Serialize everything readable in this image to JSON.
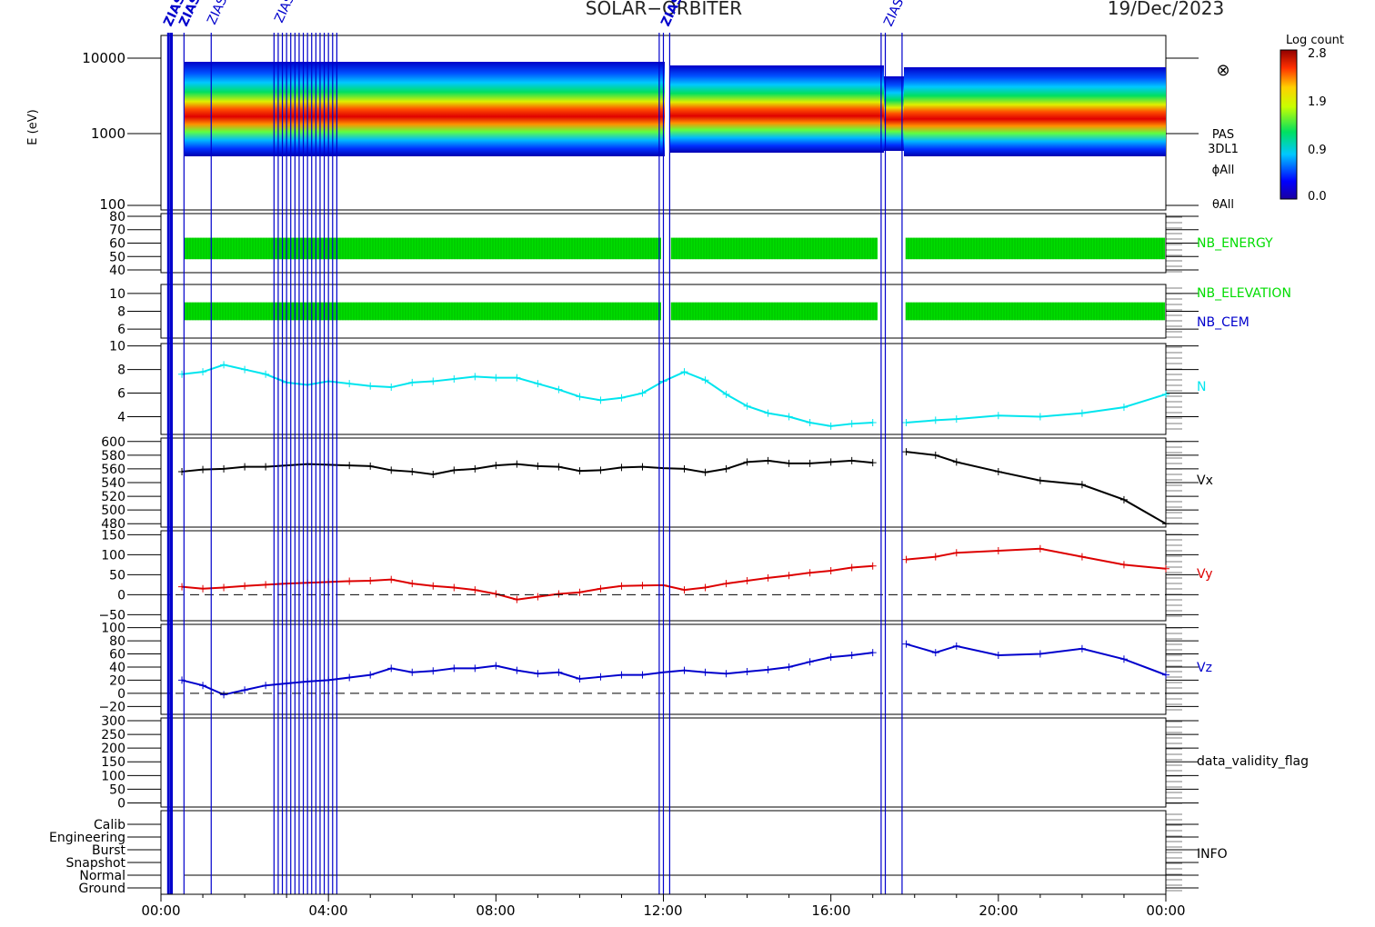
{
  "header": {
    "title": "SOLAR−ORBITER",
    "date": "19/Dec/2023"
  },
  "colorbar": {
    "label": "Log count",
    "ticks": [
      "2.8",
      "1.9",
      "0.9",
      "0.0"
    ],
    "range": [
      0.0,
      2.8
    ]
  },
  "time_axis": {
    "ticks": [
      "00:00",
      "04:00",
      "08:00",
      "12:00",
      "16:00",
      "20:00",
      "00:00"
    ]
  },
  "annotations": {
    "top_labels": [
      "ZIAS",
      "ZIAS",
      "ZIAS",
      "ZIAS",
      "ZIAS",
      "ZIAS"
    ],
    "sym_marker": "⊗"
  },
  "chart_data": [
    {
      "type": "heatmap",
      "title": "PAS 3DL1 ϕAll θAll",
      "ylabel": "E (eV)",
      "yscale": "log",
      "ylim": [
        100,
        12000
      ],
      "yticks": [
        "10000",
        "1000",
        "100"
      ],
      "right_labels": [
        "PAS",
        "3DL1",
        "ϕAll",
        "θAll"
      ],
      "peak_energy_ev": 1500
    },
    {
      "type": "bar",
      "name": "NB_ENERGY",
      "ylim": [
        38,
        82
      ],
      "yticks": [
        "80",
        "70",
        "60",
        "50",
        "40"
      ],
      "values": [
        48,
        64
      ],
      "color": "#00dd00"
    },
    {
      "type": "bar",
      "name": "NB_ELEVATION",
      "ylim": [
        5,
        11
      ],
      "yticks": [
        "10",
        "8",
        "6"
      ],
      "values": [
        7,
        9
      ],
      "color": "#00dd00",
      "extra_label": "NB_CEM",
      "extra_color": "#0000cc"
    },
    {
      "type": "line",
      "name": "N",
      "ylim": [
        2.5,
        10.2
      ],
      "yticks": [
        "10",
        "8",
        "6",
        "4"
      ],
      "color": "#00e5ee",
      "x_hours": [
        0.5,
        1,
        1.5,
        2,
        2.5,
        3,
        3.5,
        4,
        4.5,
        5,
        5.5,
        6,
        6.5,
        7,
        7.5,
        8,
        8.5,
        9,
        9.5,
        10,
        10.5,
        11,
        11.5,
        12,
        12.5,
        13,
        13.5,
        14,
        14.5,
        15,
        15.5,
        16,
        16.5,
        17,
        17.8,
        18.5,
        19,
        20,
        21,
        22,
        23,
        24
      ],
      "values": [
        7.6,
        7.8,
        8.4,
        8.0,
        7.6,
        6.9,
        6.7,
        7.0,
        6.8,
        6.6,
        6.5,
        6.9,
        7.0,
        7.2,
        7.4,
        7.3,
        7.3,
        6.8,
        6.3,
        5.7,
        5.4,
        5.6,
        6.0,
        7.0,
        7.8,
        7.1,
        5.9,
        4.9,
        4.3,
        4.0,
        3.5,
        3.2,
        3.4,
        3.5,
        3.5,
        3.7,
        3.8,
        4.1,
        4.0,
        4.3,
        4.8,
        5.9
      ]
    },
    {
      "type": "scatter",
      "name": "Vx",
      "ylim": [
        475,
        605
      ],
      "yticks": [
        "600",
        "580",
        "560",
        "540",
        "520",
        "500",
        "480"
      ],
      "color": "#000000",
      "x_hours": [
        0.5,
        1,
        1.5,
        2,
        2.5,
        3,
        3.5,
        4,
        4.5,
        5,
        5.5,
        6,
        6.5,
        7,
        7.5,
        8,
        8.5,
        9,
        9.5,
        10,
        10.5,
        11,
        11.5,
        12,
        12.5,
        13,
        13.5,
        14,
        14.5,
        15,
        15.5,
        16,
        16.5,
        17,
        17.8,
        18.5,
        19,
        20,
        21,
        22,
        23,
        24
      ],
      "values": [
        556,
        559,
        560,
        563,
        563,
        565,
        567,
        566,
        565,
        564,
        558,
        556,
        552,
        558,
        560,
        565,
        567,
        564,
        563,
        557,
        558,
        562,
        563,
        561,
        560,
        555,
        560,
        570,
        572,
        568,
        568,
        570,
        572,
        569,
        585,
        580,
        570,
        556,
        543,
        537,
        515,
        480
      ]
    },
    {
      "type": "scatter",
      "name": "Vy",
      "ylim": [
        -65,
        160
      ],
      "yticks": [
        "150",
        "100",
        "50",
        "0",
        "−50"
      ],
      "color": "#dd0000",
      "x_hours": [
        0.5,
        1,
        1.5,
        2,
        2.5,
        3,
        3.5,
        4,
        4.5,
        5,
        5.5,
        6,
        6.5,
        7,
        7.5,
        8,
        8.5,
        9,
        9.5,
        10,
        10.5,
        11,
        11.5,
        12,
        12.5,
        13,
        13.5,
        14,
        14.5,
        15,
        15.5,
        16,
        16.5,
        17,
        17.8,
        18.5,
        19,
        20,
        21,
        22,
        23,
        24
      ],
      "values": [
        20,
        15,
        18,
        22,
        25,
        28,
        30,
        32,
        34,
        35,
        38,
        28,
        22,
        18,
        12,
        2,
        -12,
        -5,
        2,
        6,
        15,
        22,
        23,
        24,
        12,
        18,
        28,
        35,
        42,
        48,
        55,
        60,
        68,
        72,
        88,
        95,
        105,
        110,
        115,
        95,
        75,
        65
      ]
    },
    {
      "type": "scatter",
      "name": "Vz",
      "ylim": [
        -32,
        105
      ],
      "yticks": [
        "100",
        "80",
        "60",
        "40",
        "20",
        "0",
        "−20"
      ],
      "color": "#0000cc",
      "x_hours": [
        0.5,
        1,
        1.5,
        2,
        2.5,
        3,
        3.5,
        4,
        4.5,
        5,
        5.5,
        6,
        6.5,
        7,
        7.5,
        8,
        8.5,
        9,
        9.5,
        10,
        10.5,
        11,
        11.5,
        12,
        12.5,
        13,
        13.5,
        14,
        14.5,
        15,
        15.5,
        16,
        16.5,
        17,
        17.8,
        18.5,
        19,
        20,
        21,
        22,
        23,
        24
      ],
      "values": [
        20,
        12,
        -2,
        5,
        12,
        15,
        18,
        20,
        24,
        28,
        38,
        32,
        34,
        38,
        38,
        42,
        35,
        30,
        32,
        22,
        25,
        28,
        28,
        32,
        35,
        32,
        30,
        33,
        36,
        40,
        48,
        55,
        58,
        62,
        75,
        62,
        72,
        58,
        60,
        68,
        52,
        28
      ]
    },
    {
      "type": "line",
      "name": "data_validity_flag",
      "ylim": [
        -15,
        310
      ],
      "yticks": [
        "300",
        "250",
        "200",
        "150",
        "100",
        "50",
        "0"
      ]
    },
    {
      "type": "line",
      "name": "INFO",
      "yticks": [
        "Calib",
        "Engineering",
        "Burst",
        "Snapshot",
        "Normal",
        "Ground"
      ]
    }
  ]
}
